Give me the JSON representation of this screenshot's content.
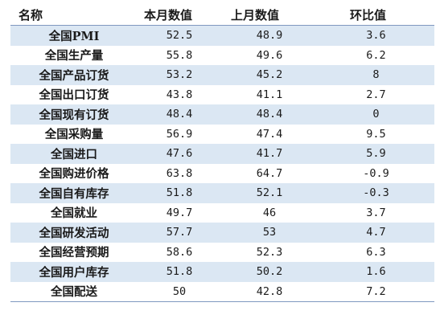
{
  "table": {
    "headers": [
      "名称",
      "本月数值",
      "上月数值",
      "环比值"
    ],
    "rows": [
      [
        "全国PMI",
        "52.5",
        "48.9",
        "3.6"
      ],
      [
        "全国生产量",
        "55.8",
        "49.6",
        "6.2"
      ],
      [
        "全国产品订货",
        "53.2",
        "45.2",
        "8"
      ],
      [
        "全国出口订货",
        "43.8",
        "41.1",
        "2.7"
      ],
      [
        "全国现有订货",
        "48.4",
        "48.4",
        "0"
      ],
      [
        "全国采购量",
        "56.9",
        "47.4",
        "9.5"
      ],
      [
        "全国进口",
        "47.6",
        "41.7",
        "5.9"
      ],
      [
        "全国购进价格",
        "63.8",
        "64.7",
        "-0.9"
      ],
      [
        "全国自有库存",
        "51.8",
        "52.1",
        "-0.3"
      ],
      [
        "全国就业",
        "49.7",
        "46",
        "3.7"
      ],
      [
        "全国研发活动",
        "57.7",
        "53",
        "4.7"
      ],
      [
        "全国经营预期",
        "58.6",
        "52.3",
        "6.3"
      ],
      [
        "全国用户库存",
        "51.8",
        "50.2",
        "1.6"
      ],
      [
        "全国配送",
        "50",
        "42.8",
        "7.2"
      ]
    ]
  },
  "colors": {
    "row_stripe": "#dbe7f3",
    "rule_line": "#7f98c0"
  }
}
